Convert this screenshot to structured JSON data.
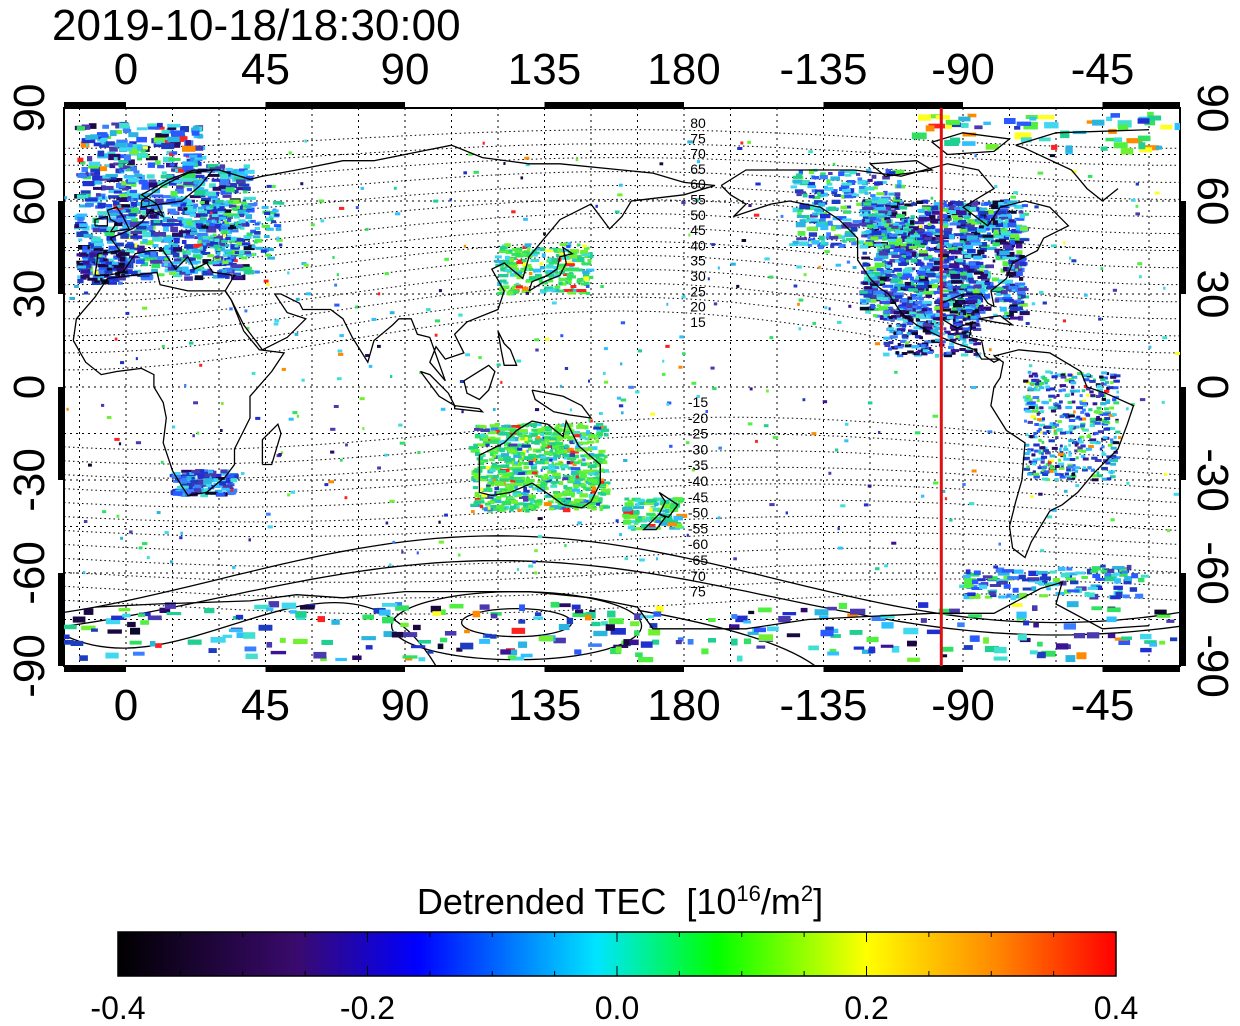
{
  "title": "2019-10-18/18:30:00",
  "map": {
    "lon_ticks_top": [
      "0",
      "45",
      "90",
      "135",
      "180",
      "-135",
      "-90",
      "-45"
    ],
    "lon_ticks_bottom": [
      "0",
      "45",
      "90",
      "135",
      "180",
      "-135",
      "-90",
      "-45"
    ],
    "lat_ticks_left": [
      "90",
      "60",
      "30",
      "0",
      "-30",
      "-60",
      "-90"
    ],
    "lat_ticks_right": [
      "90",
      "60",
      "30",
      "0",
      "-30",
      "-60",
      "-90"
    ],
    "lon_range": [
      -20,
      340
    ],
    "lat_range": [
      -90,
      90
    ],
    "grid": "dotted, every 15 degrees",
    "contour_labels_north": [
      "80",
      "75",
      "70",
      "65",
      "60",
      "55",
      "50",
      "45",
      "40",
      "35",
      "30",
      "25",
      "20",
      "15"
    ],
    "contour_labels_south": [
      "-15",
      "-20",
      "-25",
      "-30",
      "-35",
      "-40",
      "-45",
      "-50",
      "-55",
      "-60",
      "-65",
      "70",
      "75"
    ],
    "highlight_meridian_lon": -97,
    "highlight_color": "#dd1111"
  },
  "colorbar": {
    "title": "Detrended TEC",
    "unit_open": "[10",
    "unit_exp1": "16",
    "unit_mid": "/m",
    "unit_exp2": "2",
    "unit_close": "]",
    "ticks": [
      "-0.4",
      "-0.2",
      "0.0",
      "0.2",
      "0.4"
    ],
    "range": [
      -0.4,
      0.4
    ],
    "colors": [
      "#000000",
      "#3a0a6e",
      "#0000ff",
      "#00e5ff",
      "#00ff00",
      "#ffff00",
      "#ff0000"
    ]
  }
}
